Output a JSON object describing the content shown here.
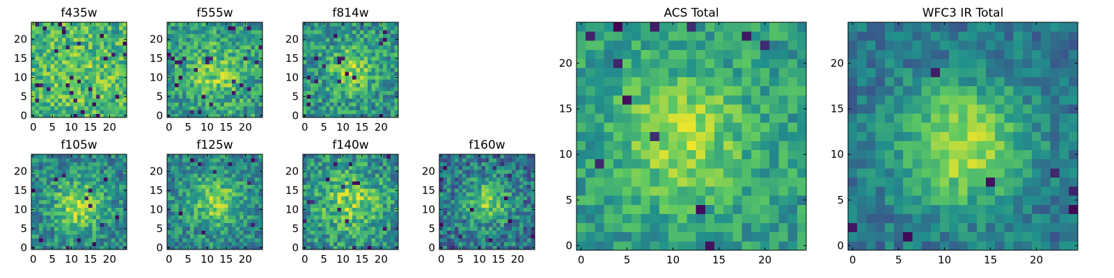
{
  "figure": {
    "colormap": [
      "#440154",
      "#3b528b",
      "#21918c",
      "#5ec962",
      "#fde725"
    ],
    "background": "#ffffff"
  },
  "chart_data": [
    {
      "type": "heatmap",
      "title": "f435w",
      "grid_size": 25,
      "xlim": [
        0,
        24
      ],
      "ylim": [
        0,
        24
      ],
      "xticks": [
        0,
        5,
        10,
        15,
        20
      ],
      "yticks": [
        0,
        5,
        10,
        15,
        20
      ],
      "center": [
        12,
        11
      ],
      "peak": 0.1,
      "spread": 10,
      "base": 0.62,
      "noise": 0.22,
      "dark_pixel_rate": 0.04,
      "seed": 11
    },
    {
      "type": "heatmap",
      "title": "f555w",
      "grid_size": 25,
      "xlim": [
        0,
        24
      ],
      "ylim": [
        0,
        24
      ],
      "xticks": [
        0,
        5,
        10,
        15,
        20
      ],
      "yticks": [
        0,
        5,
        10,
        15,
        20
      ],
      "center": [
        12,
        11
      ],
      "peak": 0.25,
      "spread": 5,
      "base": 0.55,
      "noise": 0.22,
      "dark_pixel_rate": 0.035,
      "seed": 23
    },
    {
      "type": "heatmap",
      "title": "f814w",
      "grid_size": 25,
      "xlim": [
        0,
        24
      ],
      "ylim": [
        0,
        24
      ],
      "xticks": [
        0,
        5,
        10,
        15,
        20
      ],
      "yticks": [
        0,
        5,
        10,
        15,
        20
      ],
      "center": [
        12,
        12
      ],
      "peak": 0.3,
      "spread": 4,
      "base": 0.52,
      "noise": 0.22,
      "dark_pixel_rate": 0.03,
      "seed": 37
    },
    {
      "type": "heatmap",
      "title": "f105w",
      "grid_size": 25,
      "xlim": [
        0,
        24
      ],
      "ylim": [
        0,
        24
      ],
      "xticks": [
        0,
        5,
        10,
        15,
        20
      ],
      "yticks": [
        0,
        5,
        10,
        15,
        20
      ],
      "center": [
        12,
        11
      ],
      "peak": 0.38,
      "spread": 5,
      "base": 0.45,
      "noise": 0.2,
      "dark_pixel_rate": 0.02,
      "seed": 41
    },
    {
      "type": "heatmap",
      "title": "f125w",
      "grid_size": 25,
      "xlim": [
        0,
        24
      ],
      "ylim": [
        0,
        24
      ],
      "xticks": [
        0,
        5,
        10,
        15,
        20
      ],
      "yticks": [
        0,
        5,
        10,
        15,
        20
      ],
      "center": [
        12,
        12
      ],
      "peak": 0.35,
      "spread": 5,
      "base": 0.45,
      "noise": 0.2,
      "dark_pixel_rate": 0.015,
      "seed": 53
    },
    {
      "type": "heatmap",
      "title": "f140w",
      "grid_size": 25,
      "xlim": [
        0,
        24
      ],
      "ylim": [
        0,
        24
      ],
      "xticks": [
        0,
        5,
        10,
        15,
        20
      ],
      "yticks": [
        0,
        5,
        10,
        15,
        20
      ],
      "center": [
        12,
        12
      ],
      "peak": 0.32,
      "spread": 6,
      "base": 0.48,
      "noise": 0.22,
      "dark_pixel_rate": 0.02,
      "seed": 67
    },
    {
      "type": "heatmap",
      "title": "f160w",
      "grid_size": 25,
      "xlim": [
        0,
        24
      ],
      "ylim": [
        0,
        24
      ],
      "xticks": [
        0,
        5,
        10,
        15,
        20
      ],
      "yticks": [
        0,
        5,
        10,
        15,
        20
      ],
      "center": [
        12,
        12
      ],
      "peak": 0.4,
      "spread": 4,
      "base": 0.4,
      "noise": 0.22,
      "dark_pixel_rate": 0.025,
      "seed": 79
    },
    {
      "type": "heatmap",
      "title": "ACS Total",
      "grid_size": 25,
      "xlim": [
        0,
        24
      ],
      "ylim": [
        0,
        24
      ],
      "xticks": [
        0,
        5,
        10,
        15,
        20
      ],
      "yticks": [
        0,
        5,
        10,
        15,
        20
      ],
      "center": [
        11,
        12
      ],
      "peak": 0.3,
      "spread": 5,
      "base": 0.55,
      "noise": 0.16,
      "dark_pixel_rate": 0.015,
      "seed": 97
    },
    {
      "type": "heatmap",
      "title": "WFC3 IR Total",
      "grid_size": 25,
      "xlim": [
        0,
        24
      ],
      "ylim": [
        0,
        24
      ],
      "xticks": [
        0,
        5,
        10,
        15,
        20
      ],
      "yticks": [
        0,
        5,
        10,
        15,
        20
      ],
      "center": [
        12,
        11
      ],
      "peak": 0.5,
      "spread": 5,
      "base": 0.38,
      "noise": 0.14,
      "dark_pixel_rate": 0.015,
      "seed": 113
    }
  ]
}
